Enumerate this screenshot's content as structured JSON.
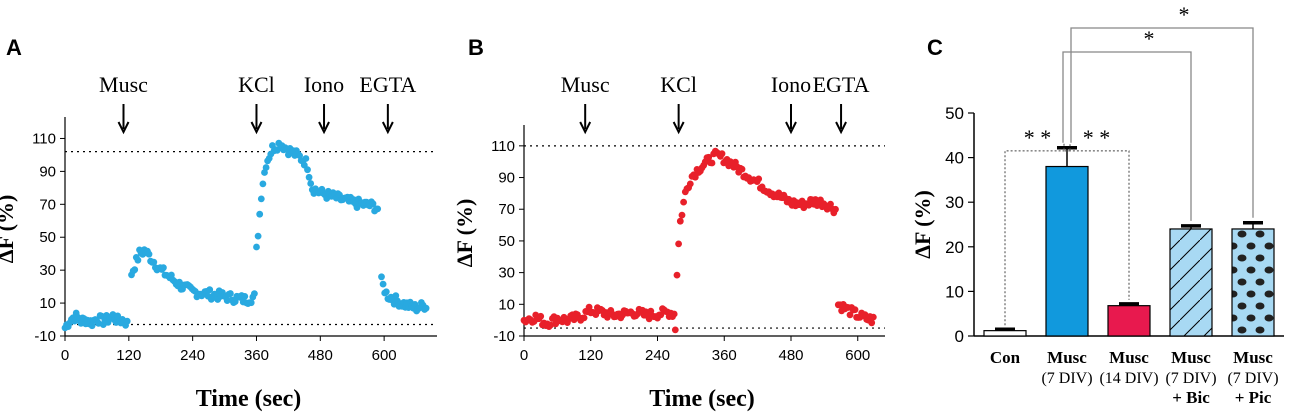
{
  "panels": {
    "A": {
      "letter": "A"
    },
    "B": {
      "letter": "B"
    },
    "C": {
      "letter": "C"
    }
  },
  "chart_data": [
    {
      "id": "A",
      "type": "scatter",
      "title": "",
      "xlabel": "Time (sec)",
      "ylabel": "ΔF (%)",
      "xlim": [
        0,
        690
      ],
      "ylim": [
        -10,
        120
      ],
      "xticks": [
        "0",
        "120",
        "240",
        "360",
        "480",
        "600"
      ],
      "yticks": [
        "-10",
        "10",
        "30",
        "50",
        "70",
        "90",
        "110"
      ],
      "reference_lines_y": [
        102,
        -3
      ],
      "color": "#29a9e0",
      "events": [
        {
          "label": "Musc",
          "t": 110
        },
        {
          "label": "KCl",
          "t": 360
        },
        {
          "label": "Iono",
          "t": 487
        },
        {
          "label": "EGTA",
          "t": 607
        }
      ],
      "segments": [
        {
          "from": 0,
          "to": 118,
          "points": [
            [
              0,
              -5
            ],
            [
              10,
              0
            ],
            [
              20,
              2
            ],
            [
              30,
              -1
            ],
            [
              40,
              0
            ],
            [
              50,
              -2
            ],
            [
              60,
              1
            ],
            [
              70,
              -1
            ],
            [
              80,
              0
            ],
            [
              90,
              2
            ],
            [
              100,
              -1
            ],
            [
              110,
              0
            ],
            [
              118,
              -3
            ]
          ]
        },
        {
          "from": 125,
          "to": 358,
          "points": [
            [
              125,
              28
            ],
            [
              140,
              40
            ],
            [
              150,
              42
            ],
            [
              165,
              36
            ],
            [
              180,
              30
            ],
            [
              200,
              25
            ],
            [
              220,
              20
            ],
            [
              240,
              17
            ],
            [
              260,
              16
            ],
            [
              280,
              15
            ],
            [
              300,
              14
            ],
            [
              320,
              13
            ],
            [
              340,
              12
            ],
            [
              358,
              14
            ]
          ]
        },
        {
          "from": 360,
          "to": 590,
          "points": [
            [
              360,
              42
            ],
            [
              365,
              60
            ],
            [
              370,
              80
            ],
            [
              378,
              95
            ],
            [
              390,
              104
            ],
            [
              405,
              107
            ],
            [
              420,
              103
            ],
            [
              440,
              99
            ],
            [
              455,
              95
            ],
            [
              465,
              80
            ],
            [
              480,
              77
            ],
            [
              500,
              75
            ],
            [
              520,
              73
            ],
            [
              540,
              71
            ],
            [
              560,
              70
            ],
            [
              580,
              69
            ],
            [
              590,
              67
            ]
          ]
        },
        {
          "from": 595,
          "to": 680,
          "points": [
            [
              595,
              23
            ],
            [
              605,
              15
            ],
            [
              620,
              12
            ],
            [
              640,
              9
            ],
            [
              660,
              7
            ],
            [
              680,
              9
            ]
          ]
        }
      ]
    },
    {
      "id": "B",
      "type": "scatter",
      "title": "",
      "xlabel": "Time (sec)",
      "ylabel": "ΔF (%)",
      "xlim": [
        0,
        640
      ],
      "ylim": [
        -10,
        120
      ],
      "xticks": [
        "0",
        "120",
        "240",
        "360",
        "480",
        "600"
      ],
      "yticks": [
        "-10",
        "10",
        "30",
        "50",
        "70",
        "90",
        "110"
      ],
      "reference_lines_y": [
        110,
        -5
      ],
      "color": "#e8202a",
      "events": [
        {
          "label": "Musc",
          "t": 110
        },
        {
          "label": "KCl",
          "t": 278
        },
        {
          "label": "Iono",
          "t": 480
        },
        {
          "label": "EGTA",
          "t": 570
        }
      ],
      "segments": [
        {
          "from": 0,
          "to": 270,
          "points": [
            [
              0,
              0
            ],
            [
              20,
              2
            ],
            [
              40,
              -2
            ],
            [
              60,
              1
            ],
            [
              80,
              0
            ],
            [
              100,
              2
            ],
            [
              110,
              4
            ],
            [
              120,
              6
            ],
            [
              140,
              5
            ],
            [
              160,
              3
            ],
            [
              180,
              4
            ],
            [
              200,
              5
            ],
            [
              220,
              3
            ],
            [
              240,
              4
            ],
            [
              260,
              5
            ],
            [
              270,
              4
            ]
          ]
        },
        {
          "from": 272,
          "to": 560,
          "points": [
            [
              272,
              -5
            ],
            [
              275,
              30
            ],
            [
              280,
              60
            ],
            [
              290,
              80
            ],
            [
              300,
              90
            ],
            [
              315,
              96
            ],
            [
              330,
              100
            ],
            [
              345,
              104
            ],
            [
              360,
              102
            ],
            [
              380,
              97
            ],
            [
              400,
              92
            ],
            [
              420,
              87
            ],
            [
              440,
              82
            ],
            [
              460,
              78
            ],
            [
              480,
              74
            ],
            [
              500,
              73
            ],
            [
              520,
              75
            ],
            [
              540,
              74
            ],
            [
              560,
              70
            ]
          ]
        },
        {
          "from": 565,
          "to": 630,
          "points": [
            [
              565,
              10
            ],
            [
              580,
              7
            ],
            [
              600,
              3
            ],
            [
              615,
              1
            ],
            [
              630,
              0
            ]
          ]
        }
      ]
    },
    {
      "id": "C",
      "type": "bar",
      "title": "",
      "xlabel": "",
      "ylabel": "ΔF (%)",
      "ylim": [
        0,
        50
      ],
      "yticks": [
        "0",
        "10",
        "20",
        "30",
        "40",
        "50"
      ],
      "categories": [
        {
          "line1": "Con",
          "line2": "",
          "line3": ""
        },
        {
          "line1": "Musc",
          "line2": "(7 DIV)",
          "line3": ""
        },
        {
          "line1": "Musc",
          "line2": "(14 DIV)",
          "line3": ""
        },
        {
          "line1": "Musc",
          "line2": "(7 DIV)",
          "line3": "+ Bic"
        },
        {
          "line1": "Musc",
          "line2": "(7 DIV)",
          "line3": "+ Pic"
        }
      ],
      "values": [
        1.2,
        38,
        6.8,
        24,
        24
      ],
      "errors": [
        0.3,
        4.2,
        0.4,
        0.7,
        1.4
      ],
      "fills": [
        "#ffffff",
        "#1199dd",
        "#e8194e",
        "#a8d9f3",
        "#a8d9f3"
      ],
      "patterns": [
        "none",
        "none",
        "none",
        "diagonal",
        "dots"
      ],
      "significance": [
        {
          "label": "* *",
          "between": [
            0,
            1
          ]
        },
        {
          "label": "* *",
          "between": [
            1,
            2
          ]
        },
        {
          "label": "*",
          "between": [
            1,
            3
          ]
        },
        {
          "label": "*",
          "between": [
            1,
            4
          ]
        }
      ]
    }
  ]
}
